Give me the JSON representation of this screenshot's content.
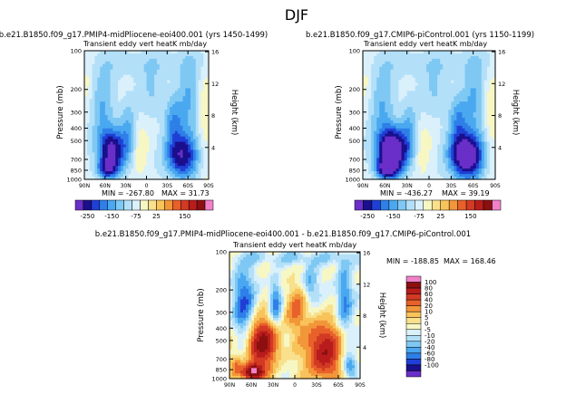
{
  "page_title": "DJF",
  "chart_data": [
    {
      "type": "heatmap",
      "title": "b.e21.B1850.f09_g17.PMIP4-midPliocene-eoi400.001 (yrs 1450-1499)",
      "subtitle": "Transient eddy vert heatK mb/day",
      "xlabel": "",
      "ylabel": "Pressure (mb)",
      "ylabel_right": "Height (km)",
      "x_ticks": [
        "90N",
        "60N",
        "30N",
        "0",
        "30S",
        "60S",
        "90S"
      ],
      "y_ticks": [
        "100",
        "200",
        "300",
        "400",
        "500",
        "700",
        "850",
        "1000"
      ],
      "y_ticks_right": [
        "4",
        "8",
        "12",
        "16"
      ],
      "ylim": [
        1000,
        100
      ],
      "min_label": "MIN = -267.80",
      "max_label": "MAX = 31.73",
      "colorbar_labels": [
        "-250",
        "-150",
        "-75",
        "25",
        "150"
      ],
      "colors": [
        "#6a2fc8",
        "#1a0f8c",
        "#1f3fd6",
        "#2f7fe8",
        "#4aa8f0",
        "#7fc8f4",
        "#b3e0f8",
        "#daf0fb",
        "#f7f7c4",
        "#f8e08c",
        "#f8c35a",
        "#f2963a",
        "#e8602a",
        "#d23a24",
        "#b81c1c",
        "#8c1010",
        "#f081c8"
      ]
    },
    {
      "type": "heatmap",
      "title": "b.e21.B1850.f09_g17.CMIP6-piControl.001 (yrs 1150-1199)",
      "subtitle": "Transient eddy vert heatK mb/day",
      "xlabel": "",
      "ylabel": "Pressure (mb)",
      "ylabel_right": "Height (km)",
      "x_ticks": [
        "90N",
        "60N",
        "30N",
        "0",
        "30S",
        "60S",
        "90S"
      ],
      "y_ticks": [
        "100",
        "200",
        "300",
        "400",
        "500",
        "700",
        "850",
        "1000"
      ],
      "y_ticks_right": [
        "4",
        "8",
        "12",
        "16"
      ],
      "ylim": [
        1000,
        100
      ],
      "min_label": "MIN = -436.27",
      "max_label": "MAX = 39.19",
      "colorbar_labels": [
        "-250",
        "-150",
        "-75",
        "25",
        "150"
      ]
    },
    {
      "type": "heatmap",
      "title": "b.e21.B1850.f09_g17.PMIP4-midPliocene-eoi400.001 - b.e21.B1850.f09_g17.CMIP6-piControl.001",
      "subtitle": "Transient eddy vert heatK mb/day",
      "xlabel": "",
      "ylabel": "Pressure (mb)",
      "ylabel_right": "Height (km)",
      "x_ticks": [
        "90N",
        "60N",
        "30N",
        "0",
        "30S",
        "60S",
        "90S"
      ],
      "y_ticks": [
        "100",
        "200",
        "300",
        "400",
        "500",
        "700",
        "850",
        "1000"
      ],
      "y_ticks_right": [
        "4",
        "8",
        "12",
        "16"
      ],
      "ylim": [
        1000,
        100
      ],
      "min_label": "MIN = -188.85",
      "max_label": "MAX = 168.46",
      "colorbar_labels": [
        "100",
        "80",
        "60",
        "40",
        "20",
        "10",
        "5",
        "0",
        "-5",
        "-10",
        "-20",
        "-40",
        "-60",
        "-80",
        "-100"
      ],
      "colors": [
        "#f081c8",
        "#8c1010",
        "#b81c1c",
        "#d23a24",
        "#e8602a",
        "#f2963a",
        "#f8c35a",
        "#f8e08c",
        "#f7f7c4",
        "#daf0fb",
        "#b3e0f8",
        "#7fc8f4",
        "#4aa8f0",
        "#2f7fe8",
        "#1f3fd6",
        "#1a0f8c",
        "#6a2fc8"
      ]
    }
  ]
}
